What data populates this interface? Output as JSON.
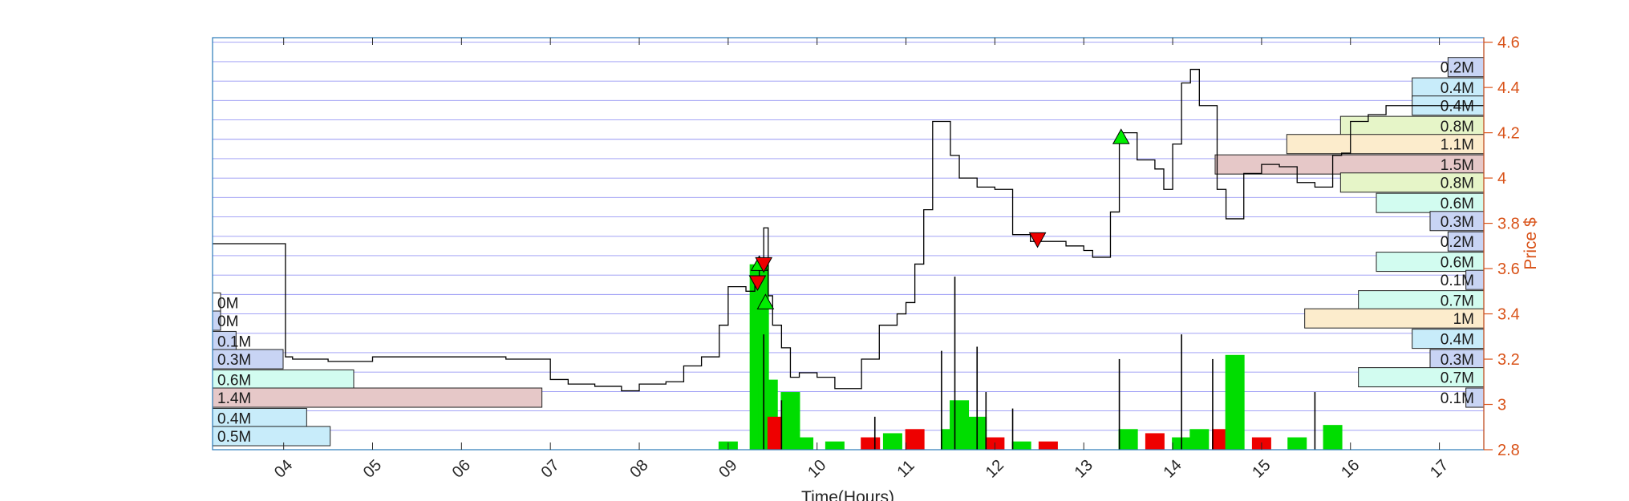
{
  "chart_data": {
    "type": "line",
    "xlabel": "Time(Hours)",
    "ylabel": "Price $",
    "xlim": [
      3.2,
      17.5
    ],
    "ylim": [
      2.8,
      4.62
    ],
    "x_ticks": [
      "04",
      "05",
      "06",
      "07",
      "08",
      "09",
      "10",
      "11",
      "12",
      "13",
      "14",
      "15",
      "16",
      "17"
    ],
    "y_ticks": [
      "2.8",
      "3",
      "3.2",
      "3.4",
      "3.6",
      "3.8",
      "4",
      "4.2",
      "4.4",
      "4.6"
    ],
    "grid": "horizontal",
    "price_series": {
      "x": [
        3.2,
        4.0,
        4.02,
        4.1,
        4.5,
        5.0,
        5.5,
        6.0,
        6.5,
        6.8,
        7.0,
        7.2,
        7.5,
        7.8,
        8.0,
        8.3,
        8.5,
        8.7,
        8.9,
        9.0,
        9.2,
        9.3,
        9.35,
        9.4,
        9.45,
        9.5,
        9.6,
        9.7,
        9.8,
        10.0,
        10.2,
        10.5,
        10.7,
        10.9,
        11.0,
        11.1,
        11.2,
        11.3,
        11.5,
        11.6,
        11.8,
        12.0,
        12.2,
        12.4,
        12.6,
        12.8,
        13.0,
        13.1,
        13.3,
        13.4,
        13.6,
        13.8,
        13.9,
        14.0,
        14.1,
        14.2,
        14.3,
        14.5,
        14.6,
        14.8,
        15.0,
        15.2,
        15.4,
        15.6,
        15.8,
        15.9,
        16.0,
        16.2,
        16.4,
        16.8,
        17.3,
        17.5
      ],
      "y": [
        3.71,
        3.71,
        3.21,
        3.2,
        3.19,
        3.21,
        3.21,
        3.21,
        3.2,
        3.2,
        3.11,
        3.09,
        3.08,
        3.06,
        3.09,
        3.1,
        3.17,
        3.21,
        3.35,
        3.52,
        3.5,
        3.55,
        3.62,
        3.78,
        3.48,
        3.35,
        3.25,
        3.12,
        3.14,
        3.12,
        3.07,
        3.2,
        3.35,
        3.4,
        3.45,
        3.62,
        3.86,
        4.25,
        4.1,
        4.0,
        3.96,
        3.95,
        3.75,
        3.72,
        3.72,
        3.7,
        3.68,
        3.65,
        3.85,
        4.2,
        4.08,
        4.04,
        3.95,
        4.15,
        4.42,
        4.48,
        4.32,
        3.95,
        3.82,
        4.02,
        4.06,
        4.05,
        3.98,
        3.96,
        4.1,
        4.11,
        4.25,
        4.28,
        4.32,
        4.32,
        4.32,
        4.32
      ]
    },
    "volume_bars": {
      "note_series_colors": {
        "up": "#00dd00",
        "down": "#ee0000",
        "neutral": "#000000"
      },
      "bars": [
        {
          "x": 9.0,
          "v": 0.02,
          "c": "up"
        },
        {
          "x": 9.35,
          "v": 0.45,
          "c": "up"
        },
        {
          "x": 9.45,
          "v": 0.17,
          "c": "up"
        },
        {
          "x": 9.55,
          "v": 0.08,
          "c": "down"
        },
        {
          "x": 9.7,
          "v": 0.14,
          "c": "up"
        },
        {
          "x": 9.85,
          "v": 0.03,
          "c": "up"
        },
        {
          "x": 10.2,
          "v": 0.02,
          "c": "up"
        },
        {
          "x": 10.6,
          "v": 0.03,
          "c": "down"
        },
        {
          "x": 10.85,
          "v": 0.04,
          "c": "up"
        },
        {
          "x": 11.1,
          "v": 0.05,
          "c": "down"
        },
        {
          "x": 11.5,
          "v": 0.05,
          "c": "up"
        },
        {
          "x": 11.6,
          "v": 0.12,
          "c": "up"
        },
        {
          "x": 11.8,
          "v": 0.08,
          "c": "up"
        },
        {
          "x": 12.0,
          "v": 0.03,
          "c": "down"
        },
        {
          "x": 12.3,
          "v": 0.02,
          "c": "up"
        },
        {
          "x": 12.6,
          "v": 0.02,
          "c": "down"
        },
        {
          "x": 13.5,
          "v": 0.05,
          "c": "up"
        },
        {
          "x": 13.8,
          "v": 0.04,
          "c": "down"
        },
        {
          "x": 14.1,
          "v": 0.03,
          "c": "up"
        },
        {
          "x": 14.3,
          "v": 0.05,
          "c": "up"
        },
        {
          "x": 14.55,
          "v": 0.05,
          "c": "down"
        },
        {
          "x": 14.7,
          "v": 0.23,
          "c": "up"
        },
        {
          "x": 15.0,
          "v": 0.03,
          "c": "down"
        },
        {
          "x": 15.4,
          "v": 0.03,
          "c": "up"
        },
        {
          "x": 15.8,
          "v": 0.06,
          "c": "up"
        }
      ],
      "spikes": [
        {
          "x": 9.4,
          "v": 0.28
        },
        {
          "x": 9.6,
          "v": 0.12
        },
        {
          "x": 10.65,
          "v": 0.08
        },
        {
          "x": 11.4,
          "v": 0.24
        },
        {
          "x": 11.55,
          "v": 0.42
        },
        {
          "x": 11.8,
          "v": 0.25
        },
        {
          "x": 11.9,
          "v": 0.14
        },
        {
          "x": 12.2,
          "v": 0.1
        },
        {
          "x": 13.4,
          "v": 0.22
        },
        {
          "x": 14.1,
          "v": 0.28
        },
        {
          "x": 14.45,
          "v": 0.22
        },
        {
          "x": 15.6,
          "v": 0.14
        }
      ]
    },
    "markers": [
      {
        "x": 9.35,
        "y": 3.62,
        "kind": "buy"
      },
      {
        "x": 9.4,
        "y": 3.62,
        "kind": "sell"
      },
      {
        "x": 9.33,
        "y": 3.54,
        "kind": "sell"
      },
      {
        "x": 9.42,
        "y": 3.45,
        "kind": "buy"
      },
      {
        "x": 12.48,
        "y": 3.73,
        "kind": "sell"
      },
      {
        "x": 13.42,
        "y": 4.18,
        "kind": "buy"
      }
    ],
    "volume_profile_left": [
      {
        "y": 3.45,
        "value": 0.0,
        "label": "0M",
        "color": "#ffffff"
      },
      {
        "y": 3.37,
        "value": 0.0,
        "label": "0M",
        "color": "#c8d4f4"
      },
      {
        "y": 3.28,
        "value": 0.1,
        "label": "0.1M",
        "color": "#c8d4f4"
      },
      {
        "y": 3.2,
        "value": 0.3,
        "label": "0.3M",
        "color": "#c8d4f4"
      },
      {
        "y": 3.11,
        "value": 0.6,
        "label": "0.6M",
        "color": "#d2fcf0"
      },
      {
        "y": 3.03,
        "value": 1.4,
        "label": "1.4M",
        "color": "#e6c8c8"
      },
      {
        "y": 2.94,
        "value": 0.4,
        "label": "0.4M",
        "color": "#c8ecfa"
      },
      {
        "y": 2.86,
        "value": 0.5,
        "label": "0.5M",
        "color": "#c8ecfa"
      }
    ],
    "volume_profile_right": [
      {
        "y": 4.49,
        "value": 0.2,
        "label": "0.2M",
        "color": "#c8d4f4"
      },
      {
        "y": 4.4,
        "value": 0.4,
        "label": "0.4M",
        "color": "#c8ecfa"
      },
      {
        "y": 4.32,
        "value": 0.4,
        "label": "0.4M",
        "color": "#c8ecfa"
      },
      {
        "y": 4.23,
        "value": 0.8,
        "label": "0.8M",
        "color": "#e6f5c8"
      },
      {
        "y": 4.15,
        "value": 1.1,
        "label": "1.1M",
        "color": "#fceccc"
      },
      {
        "y": 4.06,
        "value": 1.5,
        "label": "1.5M",
        "color": "#e6c8c8"
      },
      {
        "y": 3.98,
        "value": 0.8,
        "label": "0.8M",
        "color": "#e6f5c8"
      },
      {
        "y": 3.89,
        "value": 0.6,
        "label": "0.6M",
        "color": "#d2fcf0"
      },
      {
        "y": 3.81,
        "value": 0.3,
        "label": "0.3M",
        "color": "#c8d4f4"
      },
      {
        "y": 3.72,
        "value": 0.2,
        "label": "0.2M",
        "color": "#c8d4f4"
      },
      {
        "y": 3.63,
        "value": 0.6,
        "label": "0.6M",
        "color": "#d2fcf0"
      },
      {
        "y": 3.55,
        "value": 0.1,
        "label": "0.1M",
        "color": "#c8d4f4"
      },
      {
        "y": 3.46,
        "value": 0.7,
        "label": "0.7M",
        "color": "#d2fcf0"
      },
      {
        "y": 3.38,
        "value": 1.0,
        "label": "1M",
        "color": "#fceccc"
      },
      {
        "y": 3.29,
        "value": 0.4,
        "label": "0.4M",
        "color": "#c8ecfa"
      },
      {
        "y": 3.2,
        "value": 0.3,
        "label": "0.3M",
        "color": "#c8d4f4"
      },
      {
        "y": 3.12,
        "value": 0.7,
        "label": "0.7M",
        "color": "#d2fcf0"
      },
      {
        "y": 3.03,
        "value": 0.1,
        "label": "0.1M",
        "color": "#c8d4f4"
      }
    ]
  }
}
